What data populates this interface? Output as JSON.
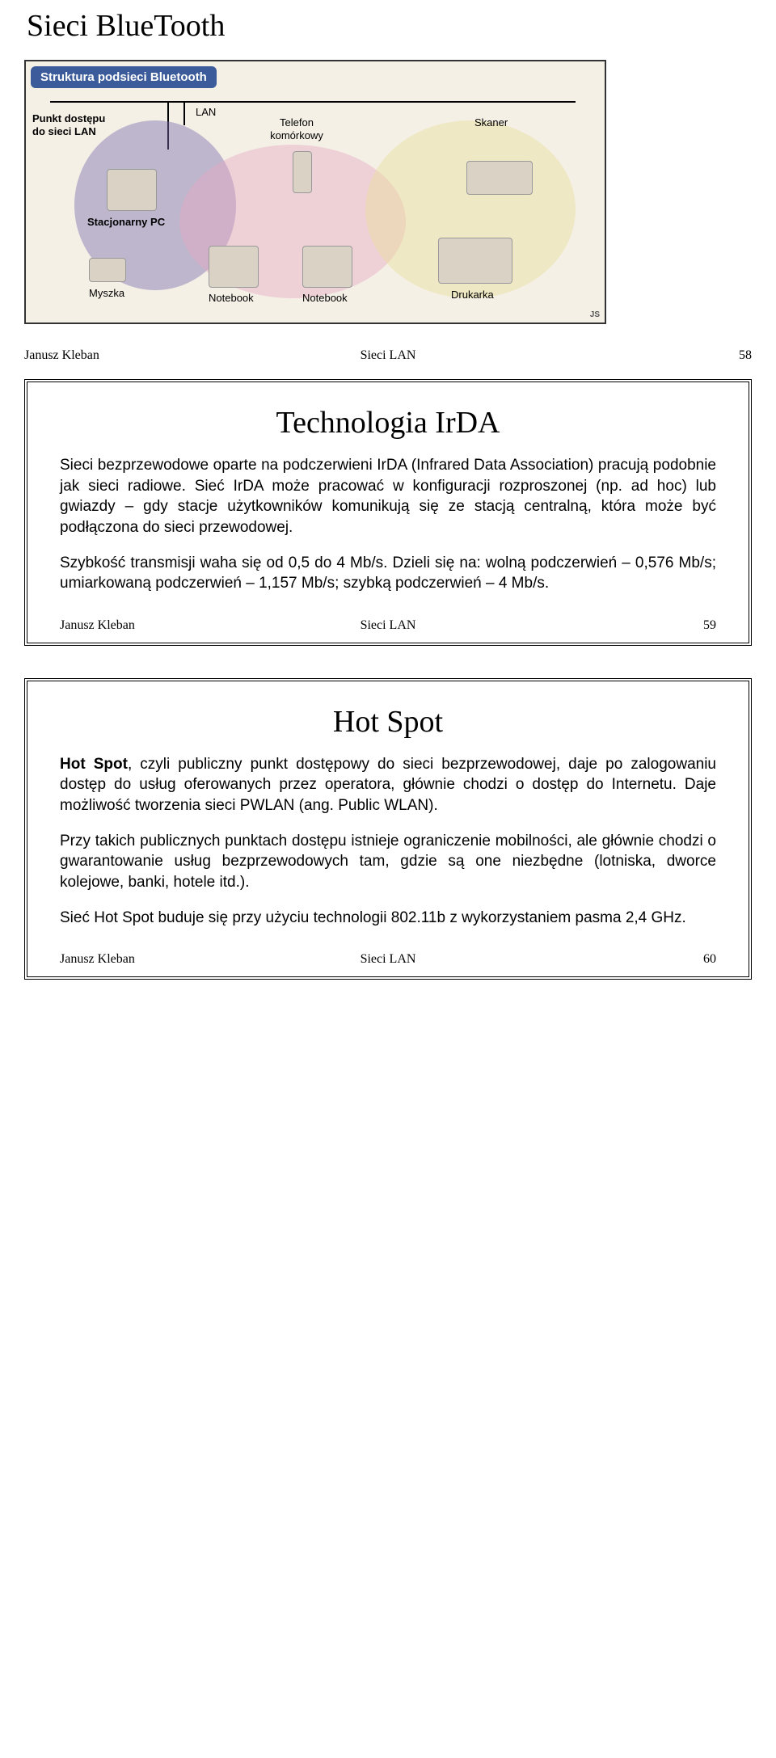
{
  "slide1": {
    "title": "Sieci BlueTooth",
    "diagram": {
      "header": "Struktura podsieci Bluetooth",
      "labels": {
        "punkt_dostepu": "Punkt dostępu\ndo sieci LAN",
        "lan": "LAN",
        "telefon": "Telefon\nkomórkowy",
        "skaner": "Skaner",
        "stacjonarny_pc": "Stacjonarny PC",
        "myszka": "Myszka",
        "notebook1": "Notebook",
        "notebook2": "Notebook",
        "drukarka": "Drukarka"
      },
      "badge": "JS",
      "colors": {
        "frame_bg": "#f5f0e6",
        "bubble_bg": "#3b5b9a",
        "blob_purple": "#7a6fb0",
        "blob_pink": "#e7a9c5",
        "blob_yellow": "#e8dd9c"
      }
    },
    "footer": {
      "author": "Janusz Kleban",
      "center": "Sieci LAN",
      "page": "58"
    }
  },
  "slide2": {
    "title": "Technologia IrDA",
    "p1_a": "Sieci bezprzewodowe oparte na podczerwieni IrDA (Infrared Data Association) pracują podobnie jak sieci radiowe. Sieć IrDA może pracować w konfiguracji rozproszonej (np. ad hoc) lub gwiazdy – gdy stacje użytkowników komunikują się ze stacją centralną, która może być podłączona do sieci przewodowej.",
    "p2_a": "Szybkość transmisji waha się od 0,5 do 4 Mb/s. Dzieli się na: wolną podczerwień – 0,576 Mb/s; umiarkowaną podczerwień – 1,157 Mb/s; szybką podczerwień – 4 Mb/s.",
    "footer": {
      "author": "Janusz Kleban",
      "center": "Sieci LAN",
      "page": "59"
    }
  },
  "slide3": {
    "title": "Hot Spot",
    "p1_lead": "Hot Spot",
    "p1_rest": ", czyli publiczny punkt dostępowy do sieci bezprzewodowej, daje po zalogowaniu dostęp do usług oferowanych przez operatora, głównie chodzi o dostęp do Internetu. Daje możliwość tworzenia sieci PWLAN (ang. Public WLAN).",
    "p2": "Przy takich publicznych punktach dostępu istnieje ograniczenie mobilności, ale głównie chodzi o gwarantowanie usług bezprzewodowych tam, gdzie są one niezbędne (lotniska, dworce kolejowe, banki, hotele itd.).",
    "p3": "Sieć Hot Spot buduje się przy użyciu technologii 802.11b z wykorzystaniem pasma 2,4 GHz.",
    "footer": {
      "author": "Janusz Kleban",
      "center": "Sieci LAN",
      "page": "60"
    }
  }
}
